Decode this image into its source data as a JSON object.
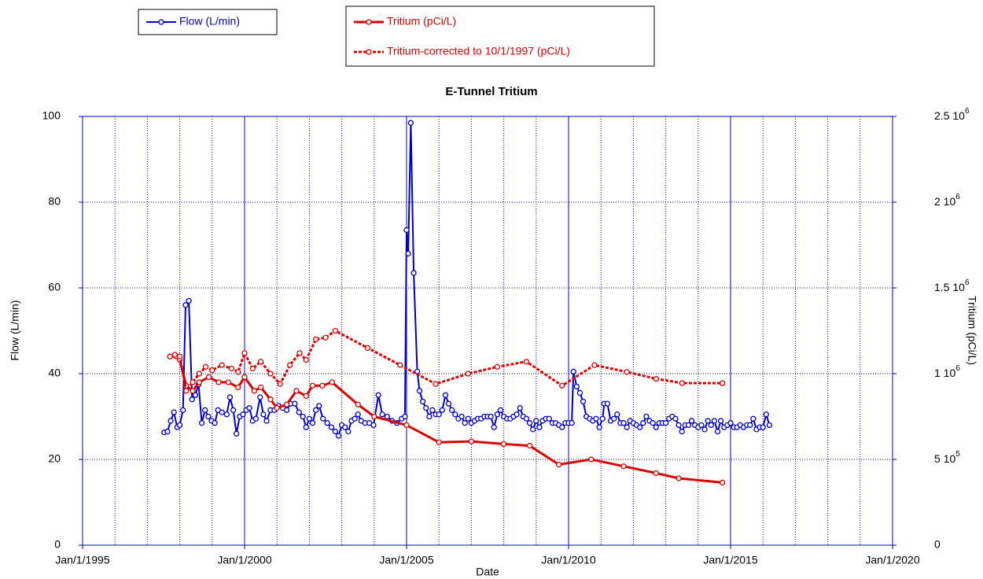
{
  "chart_data": {
    "type": "line",
    "title": "E-Tunnel Tritium",
    "xlabel": "Date",
    "ylabel": "Flow (L/min)",
    "y2label": "Tritium (pCi/L)",
    "xlim": [
      1995,
      2020
    ],
    "xticks": [
      {
        "value": 1995,
        "label": "Jan/1/1995"
      },
      {
        "value": 2000,
        "label": "Jan/1/2000"
      },
      {
        "value": 2005,
        "label": "Jan/1/2005"
      },
      {
        "value": 2010,
        "label": "Jan/1/2010"
      },
      {
        "value": 2015,
        "label": "Jan/1/2015"
      },
      {
        "value": 2020,
        "label": "Jan/1/2020"
      }
    ],
    "xminorticks": [
      1996,
      1997,
      1998,
      1999,
      2001,
      2002,
      2003,
      2004,
      2006,
      2007,
      2008,
      2009,
      2011,
      2012,
      2013,
      2014,
      2016,
      2017,
      2018,
      2019
    ],
    "ylim": [
      0,
      100
    ],
    "yticks": [
      0,
      20,
      40,
      60,
      80,
      100
    ],
    "y2lim": [
      0,
      2500000
    ],
    "y2ticks": [
      0,
      {
        "value": 500000,
        "label": "5 10^5"
      },
      {
        "value": 1000000,
        "label": "1 10^6"
      },
      {
        "value": 1500000,
        "label": "1.5 10^6"
      },
      {
        "value": 2000000,
        "label": "2 10^6"
      },
      {
        "value": 2500000,
        "label": "2.5 10^6"
      }
    ],
    "grid": true,
    "series": [
      {
        "name": "Flow (L/min)",
        "color": "#0000cc",
        "line_style": "solid",
        "x": [
          1997.52,
          1997.62,
          1997.72,
          1997.82,
          1997.92,
          1998.0,
          1998.1,
          1998.18,
          1998.28,
          1998.38,
          1998.48,
          1998.58,
          1998.68,
          1998.78,
          1998.88,
          1998.98,
          1999.08,
          1999.18,
          1999.3,
          1999.45,
          1999.55,
          1999.65,
          1999.75,
          1999.85,
          1999.95,
          2000.05,
          2000.15,
          2000.25,
          2000.35,
          2000.48,
          2000.58,
          2000.68,
          2000.8,
          2000.92,
          2001.05,
          2001.18,
          2001.3,
          2001.42,
          2001.55,
          2001.68,
          2001.8,
          2001.9,
          2002.0,
          2002.1,
          2002.2,
          2002.3,
          2002.42,
          2002.55,
          2002.68,
          2002.8,
          2002.9,
          2003.0,
          2003.1,
          2003.2,
          2003.3,
          2003.4,
          2003.5,
          2003.6,
          2003.72,
          2003.85,
          2003.98,
          2004.13,
          2004.25,
          2004.4,
          2004.55,
          2004.7,
          2004.85,
          2004.95,
          2005.0,
          2005.05,
          2005.13,
          2005.22,
          2005.33,
          2005.4,
          2005.5,
          2005.6,
          2005.7,
          2005.8,
          2005.9,
          2006.0,
          2006.1,
          2006.2,
          2006.3,
          2006.4,
          2006.5,
          2006.6,
          2006.7,
          2006.8,
          2006.9,
          2007.0,
          2007.1,
          2007.2,
          2007.3,
          2007.4,
          2007.5,
          2007.6,
          2007.7,
          2007.8,
          2007.9,
          2008.0,
          2008.1,
          2008.2,
          2008.3,
          2008.4,
          2008.5,
          2008.6,
          2008.7,
          2008.8,
          2008.9,
          2009.0,
          2009.1,
          2009.2,
          2009.3,
          2009.4,
          2009.5,
          2009.6,
          2009.7,
          2009.8,
          2009.9,
          2010.0,
          2010.1,
          2010.15,
          2010.25,
          2010.35,
          2010.45,
          2010.55,
          2010.65,
          2010.75,
          2010.85,
          2010.95,
          2011.05,
          2011.1,
          2011.2,
          2011.3,
          2011.4,
          2011.5,
          2011.6,
          2011.7,
          2011.8,
          2011.9,
          2012.0,
          2012.1,
          2012.2,
          2012.3,
          2012.4,
          2012.5,
          2012.6,
          2012.7,
          2012.8,
          2012.9,
          2013.0,
          2013.1,
          2013.2,
          2013.3,
          2013.4,
          2013.5,
          2013.6,
          2013.7,
          2013.8,
          2013.9,
          2014.0,
          2014.1,
          2014.2,
          2014.3,
          2014.4,
          2014.5,
          2014.6,
          2014.7,
          2014.8,
          2014.9,
          2015.0,
          2015.1,
          2015.2,
          2015.3,
          2015.4,
          2015.5,
          2015.6,
          2015.7,
          2015.8,
          2015.9,
          2016.0,
          2016.1,
          2016.2
        ],
        "values": [
          26.3,
          26.5,
          29,
          31,
          27.5,
          28,
          31.5,
          56,
          57,
          34,
          35,
          37.5,
          28.5,
          31.5,
          30,
          29,
          28.5,
          31.5,
          31,
          30.5,
          34.5,
          31.5,
          26,
          30,
          30.5,
          31.5,
          32,
          29,
          29.5,
          34.5,
          30.5,
          29,
          31.5,
          31.5,
          32.5,
          32,
          31.5,
          33,
          33,
          31,
          30,
          27.5,
          29.5,
          28.5,
          31.5,
          32.5,
          29.5,
          28.5,
          27.5,
          26.5,
          25.5,
          28,
          27.5,
          26.5,
          29,
          29.5,
          30.5,
          29,
          28.5,
          28.5,
          28,
          35,
          30.5,
          30,
          29,
          28.5,
          29.5,
          30,
          73.5,
          68,
          98.5,
          63.5,
          40.5,
          36,
          33.5,
          32,
          30,
          31.5,
          30.5,
          30.5,
          31.5,
          35,
          33,
          31.5,
          30.5,
          29.5,
          30,
          28.5,
          29.5,
          28.5,
          29,
          29.5,
          29.5,
          30,
          30,
          30,
          27.5,
          30.5,
          31.5,
          30,
          29.5,
          29.5,
          30,
          30.5,
          32,
          30,
          29.5,
          28.5,
          27,
          29,
          27.5,
          29,
          29.5,
          29.5,
          28.5,
          28.5,
          28,
          27.5,
          28.5,
          28.5,
          28.5,
          40.5,
          37,
          35.5,
          33.5,
          30,
          29.5,
          29,
          29.5,
          27.5,
          29.5,
          33,
          33,
          29,
          29.5,
          30.5,
          28.5,
          28.5,
          27.5,
          29,
          28.5,
          28,
          27.5,
          28.5,
          30,
          29,
          28.5,
          27.5,
          28.5,
          28.5,
          28.5,
          29.5,
          30,
          29.5,
          28,
          26.5,
          28,
          28,
          29,
          28,
          27.5,
          28,
          27,
          29,
          28,
          29,
          26.5,
          29,
          27.5,
          28,
          28.5,
          27.5,
          27.5,
          28,
          27.5,
          28,
          28,
          29.5,
          27,
          27.5,
          27.5,
          30.5,
          28
        ]
      },
      {
        "name": "Tritium (pCi/L)",
        "color": "#dd0000",
        "line_style": "solid",
        "axis": "y2",
        "x": [
          1997.7,
          1997.9,
          1998.0,
          1998.2,
          1998.4,
          1998.6,
          1998.9,
          1999.2,
          1999.5,
          1999.8,
          2000.0,
          2000.3,
          2000.5,
          2000.8,
          2001.0,
          2001.3,
          2001.6,
          2001.9,
          2002.1,
          2002.4,
          2002.7,
          2003.5,
          2004.0,
          2005.0,
          2006.0,
          2007.0,
          2008.0,
          2008.8,
          2009.7,
          2010.7,
          2011.7,
          2012.7,
          2013.4,
          2014.75
        ],
        "values": [
          1100000,
          1100000,
          1080000,
          930000,
          900000,
          950000,
          980000,
          950000,
          950000,
          920000,
          980000,
          900000,
          920000,
          850000,
          800000,
          820000,
          900000,
          870000,
          930000,
          930000,
          950000,
          820000,
          750000,
          700000,
          600000,
          605000,
          590000,
          580000,
          470000,
          500000,
          460000,
          420000,
          390000,
          365000
        ]
      },
      {
        "name": "Tritium-corrected to 10/1/1997 (pCi/L)",
        "color": "#dd0000",
        "line_style": "dashed",
        "axis": "y2",
        "x": [
          1997.7,
          1997.85,
          1998.0,
          1998.2,
          1998.4,
          1998.6,
          1998.8,
          1999.0,
          1999.3,
          1999.6,
          1999.8,
          2000.0,
          2000.25,
          2000.5,
          2000.8,
          2001.1,
          2001.4,
          2001.7,
          2001.9,
          2002.2,
          2002.5,
          2002.8,
          2003.8,
          2004.8,
          2005.9,
          2006.9,
          2007.8,
          2008.7,
          2009.8,
          2010.8,
          2011.8,
          2012.7,
          2013.5,
          2014.75
        ],
        "values": [
          1100000,
          1110000,
          1100000,
          900000,
          950000,
          1000000,
          1040000,
          1020000,
          1050000,
          1030000,
          1010000,
          1120000,
          1030000,
          1070000,
          1000000,
          940000,
          1050000,
          1120000,
          1080000,
          1200000,
          1210000,
          1250000,
          1150000,
          1050000,
          940000,
          1000000,
          1040000,
          1070000,
          930000,
          1050000,
          1010000,
          970000,
          945000,
          945000
        ]
      }
    ]
  }
}
